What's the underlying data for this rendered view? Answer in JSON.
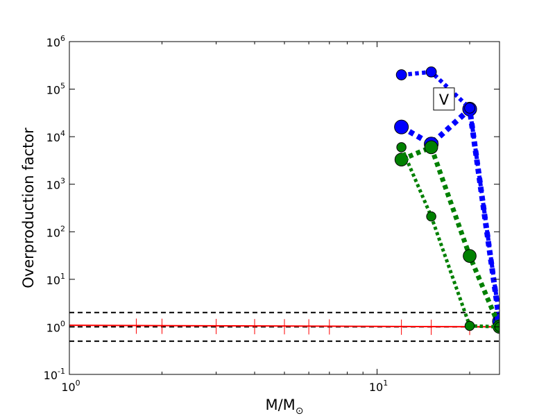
{
  "chart_data": {
    "type": "line",
    "title": "",
    "xlabel": "M/M",
    "xlabel_subscript": "⊙",
    "ylabel": "Overproduction factor",
    "xscale": "log",
    "yscale": "log",
    "xlim": [
      1,
      25
    ],
    "ylim": [
      0.1,
      1000000
    ],
    "grid": false,
    "legend": "none",
    "x_ticks": [
      {
        "value": 1,
        "base": "10",
        "exp": "0"
      },
      {
        "value": 10,
        "base": "10",
        "exp": "1"
      }
    ],
    "y_ticks": [
      {
        "value": 0.1,
        "base": "10",
        "exp": "-1"
      },
      {
        "value": 1,
        "base": "10",
        "exp": "0"
      },
      {
        "value": 10,
        "base": "10",
        "exp": "1"
      },
      {
        "value": 100,
        "base": "10",
        "exp": "2"
      },
      {
        "value": 1000,
        "base": "10",
        "exp": "3"
      },
      {
        "value": 10000,
        "base": "10",
        "exp": "4"
      },
      {
        "value": 100000,
        "base": "10",
        "exp": "5"
      },
      {
        "value": 1000000,
        "base": "10",
        "exp": "6"
      }
    ],
    "reference_lines": [
      {
        "y": 2,
        "color": "#000000"
      },
      {
        "y": 1,
        "color": "#000000"
      },
      {
        "y": 0.5,
        "color": "#000000"
      }
    ],
    "baseline_series": {
      "color": "#ff0000",
      "x": [
        1,
        25
      ],
      "y": [
        1.08,
        1.0
      ],
      "tick_x": [
        1.65,
        2,
        3,
        4,
        5,
        6,
        7,
        12,
        15,
        20
      ]
    },
    "series": [
      {
        "color": "#0000ff",
        "width": 8,
        "marker": 13,
        "x": [
          12,
          15,
          20,
          25
        ],
        "y": [
          16000,
          7000,
          38000,
          1.3
        ]
      },
      {
        "color": "#0000ff",
        "width": 6,
        "marker": 9,
        "x": [
          12,
          15,
          20,
          25
        ],
        "y": [
          200000,
          230000,
          40000,
          1.5
        ]
      },
      {
        "color": "#008000",
        "width": 7,
        "marker": 12,
        "x": [
          12,
          15,
          20,
          25
        ],
        "y": [
          3300,
          6000,
          31,
          1.0
        ]
      },
      {
        "color": "#008000",
        "width": 5,
        "marker": 8,
        "x": [
          12,
          15,
          20,
          25
        ],
        "y": [
          6000,
          210,
          1.05,
          1.0
        ]
      }
    ],
    "annotations": [
      {
        "text": "V",
        "x": 16.5,
        "y": 60000
      }
    ]
  }
}
